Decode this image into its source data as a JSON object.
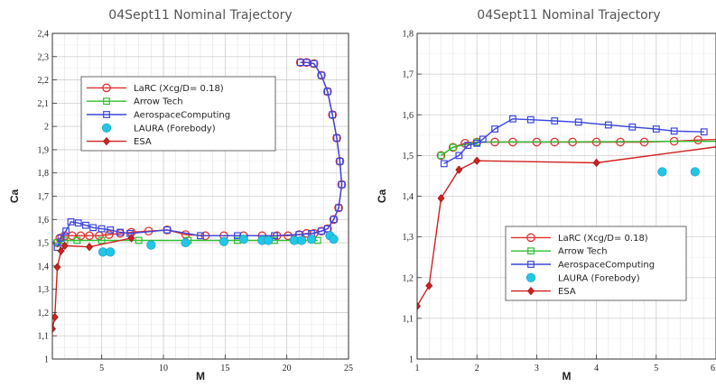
{
  "chart_data": [
    {
      "type": "line",
      "title": "04Sept11 Nominal Trajectory",
      "xlabel": "M",
      "ylabel": "Ca",
      "xlim": [
        1,
        25
      ],
      "ylim": [
        1,
        2.4
      ],
      "xticks": [
        "5",
        "10",
        "15",
        "20",
        "25"
      ],
      "yticks": [
        "1",
        "1,1",
        "1,2",
        "1,3",
        "1,4",
        "1,5",
        "1,6",
        "1,7",
        "1,8",
        "1,9",
        "2",
        "2,1",
        "2,2",
        "2,3",
        "2,4"
      ],
      "grid": true,
      "legend": "inside-upper-left",
      "series": [
        {
          "name": "LaRC (Xcg/D= 0.18)",
          "color": "#e03030",
          "marker": "circle-open",
          "line": true,
          "points": [
            [
              1.4,
              1.5
            ],
            [
              1.6,
              1.52
            ],
            [
              2,
              1.53
            ],
            [
              2.6,
              1.53
            ],
            [
              3.3,
              1.53
            ],
            [
              4,
              1.53
            ],
            [
              4.8,
              1.53
            ],
            [
              5.6,
              1.535
            ],
            [
              6.5,
              1.54
            ],
            [
              7.4,
              1.545
            ],
            [
              8.8,
              1.55
            ],
            [
              10.3,
              1.555
            ],
            [
              11.8,
              1.535
            ],
            [
              13.4,
              1.53
            ],
            [
              14.9,
              1.53
            ],
            [
              16.5,
              1.53
            ],
            [
              18,
              1.53
            ],
            [
              19.2,
              1.53
            ],
            [
              20.1,
              1.53
            ],
            [
              21,
              1.535
            ],
            [
              21.6,
              1.54
            ],
            [
              22.2,
              1.54
            ],
            [
              22.8,
              1.55
            ],
            [
              23.3,
              1.56
            ],
            [
              23.8,
              1.6
            ],
            [
              24.2,
              1.65
            ],
            [
              24.45,
              1.75
            ],
            [
              24.3,
              1.85
            ],
            [
              24.05,
              1.95
            ],
            [
              23.7,
              2.05
            ],
            [
              23.3,
              2.15
            ],
            [
              22.8,
              2.22
            ],
            [
              22.2,
              2.27
            ],
            [
              21.6,
              2.275
            ],
            [
              21.1,
              2.275
            ]
          ]
        },
        {
          "name": "Arrow Tech",
          "color": "#2ec02e",
          "marker": "square-open",
          "line": true,
          "points": [
            [
              1.4,
              1.5
            ],
            [
              2,
              1.51
            ],
            [
              3,
              1.51
            ],
            [
              5,
              1.51
            ],
            [
              8,
              1.51
            ],
            [
              12,
              1.51
            ],
            [
              16,
              1.51
            ],
            [
              19,
              1.51
            ],
            [
              21,
              1.51
            ],
            [
              22.5,
              1.51
            ]
          ]
        },
        {
          "name": "AerospaceComputing",
          "color": "#3c46e0",
          "marker": "square-open",
          "line": true,
          "points": [
            [
              1.4,
              1.48
            ],
            [
              1.7,
              1.52
            ],
            [
              2.1,
              1.55
            ],
            [
              2.5,
              1.59
            ],
            [
              3.1,
              1.585
            ],
            [
              3.7,
              1.575
            ],
            [
              4.3,
              1.565
            ],
            [
              5,
              1.56
            ],
            [
              5.7,
              1.555
            ],
            [
              6.5,
              1.545
            ],
            [
              7.3,
              1.54
            ],
            [
              10.3,
              1.555
            ],
            [
              13,
              1.53
            ],
            [
              16,
              1.53
            ],
            [
              19,
              1.53
            ],
            [
              21,
              1.535
            ],
            [
              22,
              1.54
            ],
            [
              22.8,
              1.55
            ],
            [
              23.3,
              1.56
            ],
            [
              23.8,
              1.6
            ],
            [
              24.2,
              1.65
            ],
            [
              24.45,
              1.75
            ],
            [
              24.3,
              1.85
            ],
            [
              24.05,
              1.95
            ],
            [
              23.7,
              2.05
            ],
            [
              23.3,
              2.15
            ],
            [
              22.8,
              2.22
            ],
            [
              22.2,
              2.27
            ],
            [
              21.6,
              2.275
            ],
            [
              21.1,
              2.275
            ]
          ]
        },
        {
          "name": "LAURA (Forebody)",
          "color": "#22c6e8",
          "marker": "circle-filled",
          "line": false,
          "points": [
            [
              5.1,
              1.46
            ],
            [
              5.7,
              1.46
            ],
            [
              9,
              1.49
            ],
            [
              11.8,
              1.5
            ],
            [
              14.9,
              1.505
            ],
            [
              16.5,
              1.515
            ],
            [
              18,
              1.51
            ],
            [
              18.5,
              1.51
            ],
            [
              20.6,
              1.51
            ],
            [
              21.2,
              1.51
            ],
            [
              22,
              1.515
            ],
            [
              23.5,
              1.53
            ],
            [
              23.8,
              1.515
            ]
          ]
        },
        {
          "name": "ESA",
          "color": "#d02020",
          "marker": "diamond-filled",
          "line": true,
          "points": [
            [
              1,
              1.13
            ],
            [
              1.2,
              1.18
            ],
            [
              1.4,
              1.395
            ],
            [
              1.7,
              1.465
            ],
            [
              2,
              1.487
            ],
            [
              4,
              1.482
            ],
            [
              7.4,
              1.52
            ]
          ]
        }
      ]
    },
    {
      "type": "line",
      "title": "04Sept11 Nominal Trajectory",
      "xlabel": "M",
      "ylabel": "Ca",
      "xlim": [
        1,
        6
      ],
      "ylim": [
        1,
        1.8
      ],
      "xticks": [
        "1",
        "2",
        "3",
        "4",
        "5",
        "6"
      ],
      "yticks": [
        "1",
        "1,1",
        "1,2",
        "1,3",
        "1,4",
        "1,5",
        "1,6",
        "1,7",
        "1,8"
      ],
      "grid": true,
      "legend": "inside-lower-right",
      "series": [
        {
          "name": "LaRC (Xcg/D= 0.18)",
          "color": "#e03030",
          "marker": "circle-open",
          "line": true,
          "points": [
            [
              1.4,
              1.5
            ],
            [
              1.6,
              1.52
            ],
            [
              1.8,
              1.53
            ],
            [
              2,
              1.533
            ],
            [
              2.3,
              1.533
            ],
            [
              2.6,
              1.533
            ],
            [
              3,
              1.533
            ],
            [
              3.3,
              1.533
            ],
            [
              3.6,
              1.533
            ],
            [
              4,
              1.533
            ],
            [
              4.4,
              1.533
            ],
            [
              4.8,
              1.533
            ],
            [
              5.3,
              1.535
            ],
            [
              5.7,
              1.538
            ],
            [
              6.1,
              1.54
            ]
          ]
        },
        {
          "name": "Arrow Tech",
          "color": "#2ec02e",
          "marker": "square-open",
          "line": true,
          "points": [
            [
              1.4,
              1.5
            ],
            [
              1.6,
              1.52
            ],
            [
              2,
              1.533
            ],
            [
              6.1,
              1.535
            ]
          ]
        },
        {
          "name": "AerospaceComputing",
          "color": "#3c46e0",
          "marker": "square-open",
          "line": true,
          "points": [
            [
              1.45,
              1.48
            ],
            [
              1.7,
              1.5
            ],
            [
              1.85,
              1.525
            ],
            [
              2,
              1.53
            ],
            [
              2.1,
              1.54
            ],
            [
              2.3,
              1.565
            ],
            [
              2.6,
              1.59
            ],
            [
              2.9,
              1.588
            ],
            [
              3.3,
              1.585
            ],
            [
              3.7,
              1.582
            ],
            [
              4.2,
              1.575
            ],
            [
              4.6,
              1.57
            ],
            [
              5,
              1.565
            ],
            [
              5.3,
              1.56
            ],
            [
              5.8,
              1.558
            ]
          ]
        },
        {
          "name": "LAURA (Forebody)",
          "color": "#22c6e8",
          "marker": "circle-filled",
          "line": false,
          "points": [
            [
              5.1,
              1.46
            ],
            [
              5.65,
              1.46
            ]
          ]
        },
        {
          "name": "ESA",
          "color": "#d02020",
          "marker": "diamond-filled",
          "line": true,
          "points": [
            [
              1,
              1.13
            ],
            [
              1.2,
              1.18
            ],
            [
              1.4,
              1.395
            ],
            [
              1.7,
              1.465
            ],
            [
              2,
              1.487
            ],
            [
              4,
              1.482
            ],
            [
              6.2,
              1.525
            ]
          ]
        }
      ]
    }
  ]
}
